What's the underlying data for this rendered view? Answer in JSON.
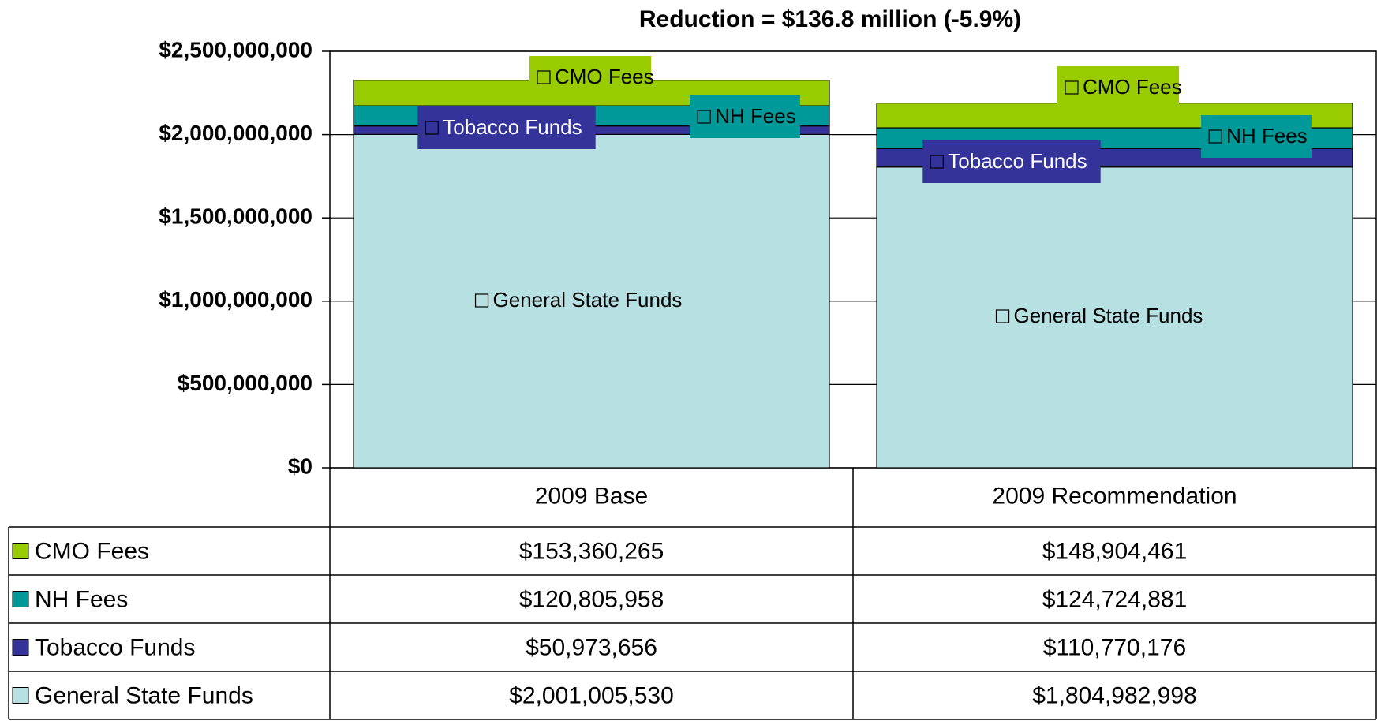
{
  "chart_data": {
    "type": "bar",
    "stacked": true,
    "title": "Reduction = $136.8 million (-5.9%)",
    "categories": [
      "2009 Base",
      "2009 Recommendation"
    ],
    "series": [
      {
        "name": "General State Funds",
        "color": "#b7e0e3",
        "values": [
          2001005530,
          1804982998
        ],
        "value_labels": [
          "$2,001,005,530",
          "$1,804,982,998"
        ]
      },
      {
        "name": "Tobacco Funds",
        "color": "#333399",
        "values": [
          50973656,
          110770176
        ],
        "value_labels": [
          "$50,973,656",
          "$110,770,176"
        ]
      },
      {
        "name": "NH Fees",
        "color": "#009999",
        "values": [
          120805958,
          124724881
        ],
        "value_labels": [
          "$120,805,958",
          "$124,724,881"
        ]
      },
      {
        "name": "CMO Fees",
        "color": "#99cc00",
        "values": [
          153360265,
          148904461
        ],
        "value_labels": [
          "$153,360,265",
          "$148,904,461"
        ]
      }
    ],
    "ylim": [
      0,
      2500000000
    ],
    "yticks": [
      {
        "value": 0,
        "label": "$0"
      },
      {
        "value": 500000000,
        "label": "$500,000,000"
      },
      {
        "value": 1000000000,
        "label": "$1,000,000,000"
      },
      {
        "value": 1500000000,
        "label": "$1,500,000,000"
      },
      {
        "value": 2000000000,
        "label": "$2,000,000,000"
      },
      {
        "value": 2500000000,
        "label": "$2,500,000,000"
      }
    ],
    "grid": true
  }
}
